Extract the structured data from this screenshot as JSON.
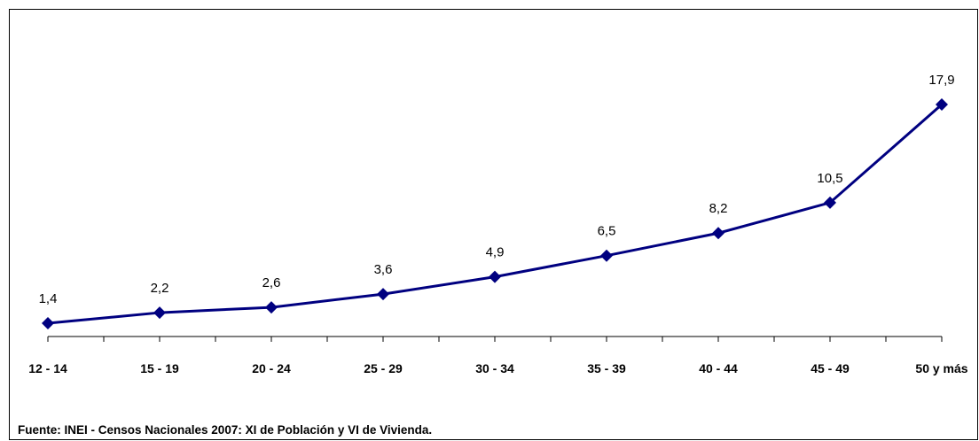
{
  "chart_data": {
    "type": "line",
    "categories": [
      "12 - 14",
      "15 - 19",
      "20 - 24",
      "25 - 29",
      "30 - 34",
      "35 - 39",
      "40 - 44",
      "45 - 49",
      "50 y más"
    ],
    "series": [
      {
        "color": "#000080",
        "values": [
          1.4,
          2.2,
          2.6,
          3.6,
          4.9,
          6.5,
          8.2,
          10.5,
          17.9
        ],
        "value_labels": [
          "1,4",
          "2,2",
          "2,6",
          "3,6",
          "4,9",
          "6,5",
          "8,2",
          "10,5",
          "17,9"
        ]
      }
    ],
    "source": "Fuente: INEI - Censos Nacionales 2007: XI de Población y VI de Vivienda."
  }
}
